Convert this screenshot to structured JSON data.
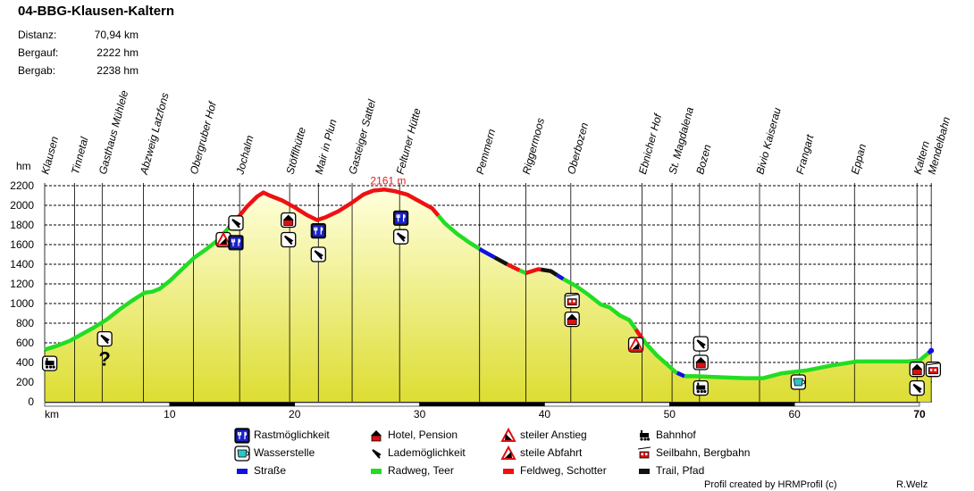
{
  "title": "04-BBG-Klausen-Kaltern",
  "stats": [
    {
      "label": "Distanz:",
      "value": "70,94 km"
    },
    {
      "label": "Bergauf:",
      "value": "2222 hm"
    },
    {
      "label": "Bergab:",
      "value": "2238 hm"
    }
  ],
  "credit": "Profil created by HRMProfil (c)",
  "author": "R.Welz",
  "colors": {
    "road": "#1010e0",
    "bike": "#22dd22",
    "gravel": "#ee1111",
    "trail": "#111111",
    "fill_top": "#ffffdd",
    "fill_bottom": "#dddd33"
  },
  "chart_data": {
    "type": "area",
    "title": "04-BBG-Klausen-Kaltern",
    "xlabel": "km",
    "ylabel": "hm",
    "xlim": [
      0,
      71
    ],
    "ylim": [
      0,
      2200
    ],
    "x_ticks": [
      10,
      20,
      30,
      40,
      50,
      60,
      70
    ],
    "x_tick_labels": [
      "10",
      "20",
      "30",
      "40",
      "50",
      "60",
      "70"
    ],
    "bold_x_ticks": [
      "70"
    ],
    "y_ticks": [
      0,
      200,
      400,
      600,
      800,
      1000,
      1200,
      1400,
      1600,
      1800,
      2000,
      2200
    ],
    "y_tick_labels": [
      "0",
      "200",
      "400",
      "600",
      "800",
      "1000",
      "1200",
      "1400",
      "1600",
      "1800",
      "2000",
      "2200"
    ],
    "x_start_label": "km",
    "y_axis_label": "hm",
    "max_label": "2161 m",
    "max_point": {
      "x": 27.2,
      "y": 2161
    },
    "profile": [
      [
        0,
        530
      ],
      [
        1,
        570
      ],
      [
        2,
        620
      ],
      [
        3,
        690
      ],
      [
        4,
        760
      ],
      [
        5,
        840
      ],
      [
        6,
        940
      ],
      [
        7,
        1030
      ],
      [
        8,
        1110
      ],
      [
        8.6,
        1120
      ],
      [
        9.2,
        1150
      ],
      [
        10,
        1230
      ],
      [
        11,
        1350
      ],
      [
        12,
        1470
      ],
      [
        13,
        1560
      ],
      [
        13.8,
        1640
      ],
      [
        14.5,
        1740
      ],
      [
        15.5,
        1880
      ],
      [
        16.2,
        1990
      ],
      [
        17,
        2090
      ],
      [
        17.5,
        2130
      ],
      [
        18,
        2100
      ],
      [
        19,
        2050
      ],
      [
        20,
        1980
      ],
      [
        21,
        1900
      ],
      [
        21.8,
        1850
      ],
      [
        22.5,
        1880
      ],
      [
        23.5,
        1940
      ],
      [
        24.5,
        2020
      ],
      [
        25.5,
        2110
      ],
      [
        26.3,
        2150
      ],
      [
        27.2,
        2161
      ],
      [
        28,
        2145
      ],
      [
        29,
        2110
      ],
      [
        30,
        2040
      ],
      [
        31,
        1970
      ],
      [
        32,
        1820
      ],
      [
        33,
        1710
      ],
      [
        34,
        1620
      ],
      [
        35,
        1540
      ],
      [
        36,
        1470
      ],
      [
        37,
        1400
      ],
      [
        37.8,
        1350
      ],
      [
        38.5,
        1310
      ],
      [
        39.5,
        1350
      ],
      [
        40.5,
        1330
      ],
      [
        41.5,
        1250
      ],
      [
        42.5,
        1180
      ],
      [
        43.5,
        1090
      ],
      [
        44.5,
        990
      ],
      [
        45.2,
        960
      ],
      [
        46,
        880
      ],
      [
        46.8,
        830
      ],
      [
        47.5,
        700
      ],
      [
        48.2,
        580
      ],
      [
        49,
        470
      ],
      [
        49.8,
        380
      ],
      [
        50.5,
        300
      ],
      [
        51.2,
        260
      ],
      [
        52,
        260
      ],
      [
        54,
        250
      ],
      [
        56,
        240
      ],
      [
        57.5,
        240
      ],
      [
        59,
        290
      ],
      [
        61,
        320
      ],
      [
        63,
        370
      ],
      [
        65,
        410
      ],
      [
        67,
        410
      ],
      [
        69,
        410
      ],
      [
        70,
        420
      ],
      [
        70.94,
        520
      ]
    ],
    "segments": [
      {
        "type": "bike",
        "from": 0,
        "to": 14.7
      },
      {
        "type": "gravel",
        "from": 14.7,
        "to": 31.5
      },
      {
        "type": "bike",
        "from": 31.5,
        "to": 34.8
      },
      {
        "type": "road",
        "from": 34.8,
        "to": 36
      },
      {
        "type": "trail",
        "from": 36,
        "to": 37
      },
      {
        "type": "gravel",
        "from": 37,
        "to": 38
      },
      {
        "type": "bike",
        "from": 38,
        "to": 38.5
      },
      {
        "type": "gravel",
        "from": 38.5,
        "to": 39.7
      },
      {
        "type": "trail",
        "from": 39.7,
        "to": 41
      },
      {
        "type": "road",
        "from": 41,
        "to": 41.5
      },
      {
        "type": "bike",
        "from": 41.5,
        "to": 47.3
      },
      {
        "type": "gravel",
        "from": 47.3,
        "to": 47.8
      },
      {
        "type": "bike",
        "from": 47.8,
        "to": 50.6
      },
      {
        "type": "road",
        "from": 50.6,
        "to": 51.2
      },
      {
        "type": "bike",
        "from": 51.2,
        "to": 70.7
      },
      {
        "type": "road",
        "from": 70.7,
        "to": 70.94
      }
    ],
    "waypoints": [
      {
        "name": "Klausen",
        "km": 0
      },
      {
        "name": "Tinnetal",
        "km": 2.4
      },
      {
        "name": "Gasthaus Mühlele",
        "km": 4.6
      },
      {
        "name": "Abzweig Latzfons",
        "km": 7.9
      },
      {
        "name": "Obergruber Hof",
        "km": 11.9
      },
      {
        "name": "Jochalm",
        "km": 15.6
      },
      {
        "name": "Stöfflhütte",
        "km": 19.6
      },
      {
        "name": "Mair in Plun",
        "km": 21.9
      },
      {
        "name": "Gasteiger Sattel",
        "km": 24.6
      },
      {
        "name": "Feltuner Hütte",
        "km": 28.4
      },
      {
        "name": "Pemmern",
        "km": 34.8
      },
      {
        "name": "Riggermoos",
        "km": 38.5
      },
      {
        "name": "Oberbozen",
        "km": 42.1
      },
      {
        "name": "Ebnicher Hof",
        "km": 47.8
      },
      {
        "name": "St. Magdalena",
        "km": 50.2
      },
      {
        "name": "Bozen",
        "km": 52.4
      },
      {
        "name": "Bivio Kaiserau",
        "km": 57.2
      },
      {
        "name": "Frangart",
        "km": 60.4
      },
      {
        "name": "Eppan",
        "km": 64.8
      },
      {
        "name": "Kaltern",
        "km": 69.8
      },
      {
        "name": "Mendelbahn",
        "km": 70.94
      }
    ],
    "markers": [
      {
        "icon": "station",
        "km": 0.4,
        "alt": 390
      },
      {
        "icon": "charging",
        "km": 4.8,
        "alt": 640
      },
      {
        "icon": "unknown",
        "km": 4.8,
        "alt": 440
      },
      {
        "icon": "charging",
        "km": 15.3,
        "alt": 1820
      },
      {
        "icon": "steep-descent",
        "km": 14.3,
        "alt": 1650
      },
      {
        "icon": "restaurant",
        "km": 15.3,
        "alt": 1620
      },
      {
        "icon": "hotel",
        "km": 19.5,
        "alt": 1850
      },
      {
        "icon": "charging",
        "km": 19.5,
        "alt": 1650
      },
      {
        "icon": "restaurant",
        "km": 21.9,
        "alt": 1740
      },
      {
        "icon": "charging",
        "km": 21.9,
        "alt": 1500
      },
      {
        "icon": "restaurant",
        "km": 28.5,
        "alt": 1870
      },
      {
        "icon": "charging",
        "km": 28.5,
        "alt": 1680
      },
      {
        "icon": "cable-car",
        "km": 42.2,
        "alt": 1030
      },
      {
        "icon": "hotel",
        "km": 42.2,
        "alt": 840
      },
      {
        "icon": "steep-descent",
        "km": 47.3,
        "alt": 580
      },
      {
        "icon": "charging",
        "km": 52.5,
        "alt": 590
      },
      {
        "icon": "hotel",
        "km": 52.5,
        "alt": 400
      },
      {
        "icon": "station",
        "km": 52.5,
        "alt": 140
      },
      {
        "icon": "water",
        "km": 60.3,
        "alt": 200
      },
      {
        "icon": "hotel",
        "km": 69.8,
        "alt": 330
      },
      {
        "icon": "cable-car",
        "km": 71.1,
        "alt": 330
      },
      {
        "icon": "charging",
        "km": 69.8,
        "alt": 140
      }
    ]
  },
  "legend": {
    "items": [
      {
        "icon": "restaurant",
        "label": "Rastmöglichkeit"
      },
      {
        "icon": "hotel",
        "label": "Hotel, Pension"
      },
      {
        "icon": "steep-ascent",
        "label": "steiler Anstieg"
      },
      {
        "icon": "station",
        "label": "Bahnhof"
      },
      {
        "icon": "water",
        "label": "Wasserstelle"
      },
      {
        "icon": "charging",
        "label": "Lademöglichkeit"
      },
      {
        "icon": "steep-descent",
        "label": "steile Abfahrt"
      },
      {
        "icon": "cable-car",
        "label": "Seilbahn, Bergbahn"
      },
      {
        "icon": "road",
        "label": "Straße"
      },
      {
        "icon": "bike",
        "label": "Radweg, Teer"
      },
      {
        "icon": "gravel",
        "label": "Feldweg, Schotter"
      },
      {
        "icon": "trail",
        "label": "Trail, Pfad"
      }
    ]
  }
}
